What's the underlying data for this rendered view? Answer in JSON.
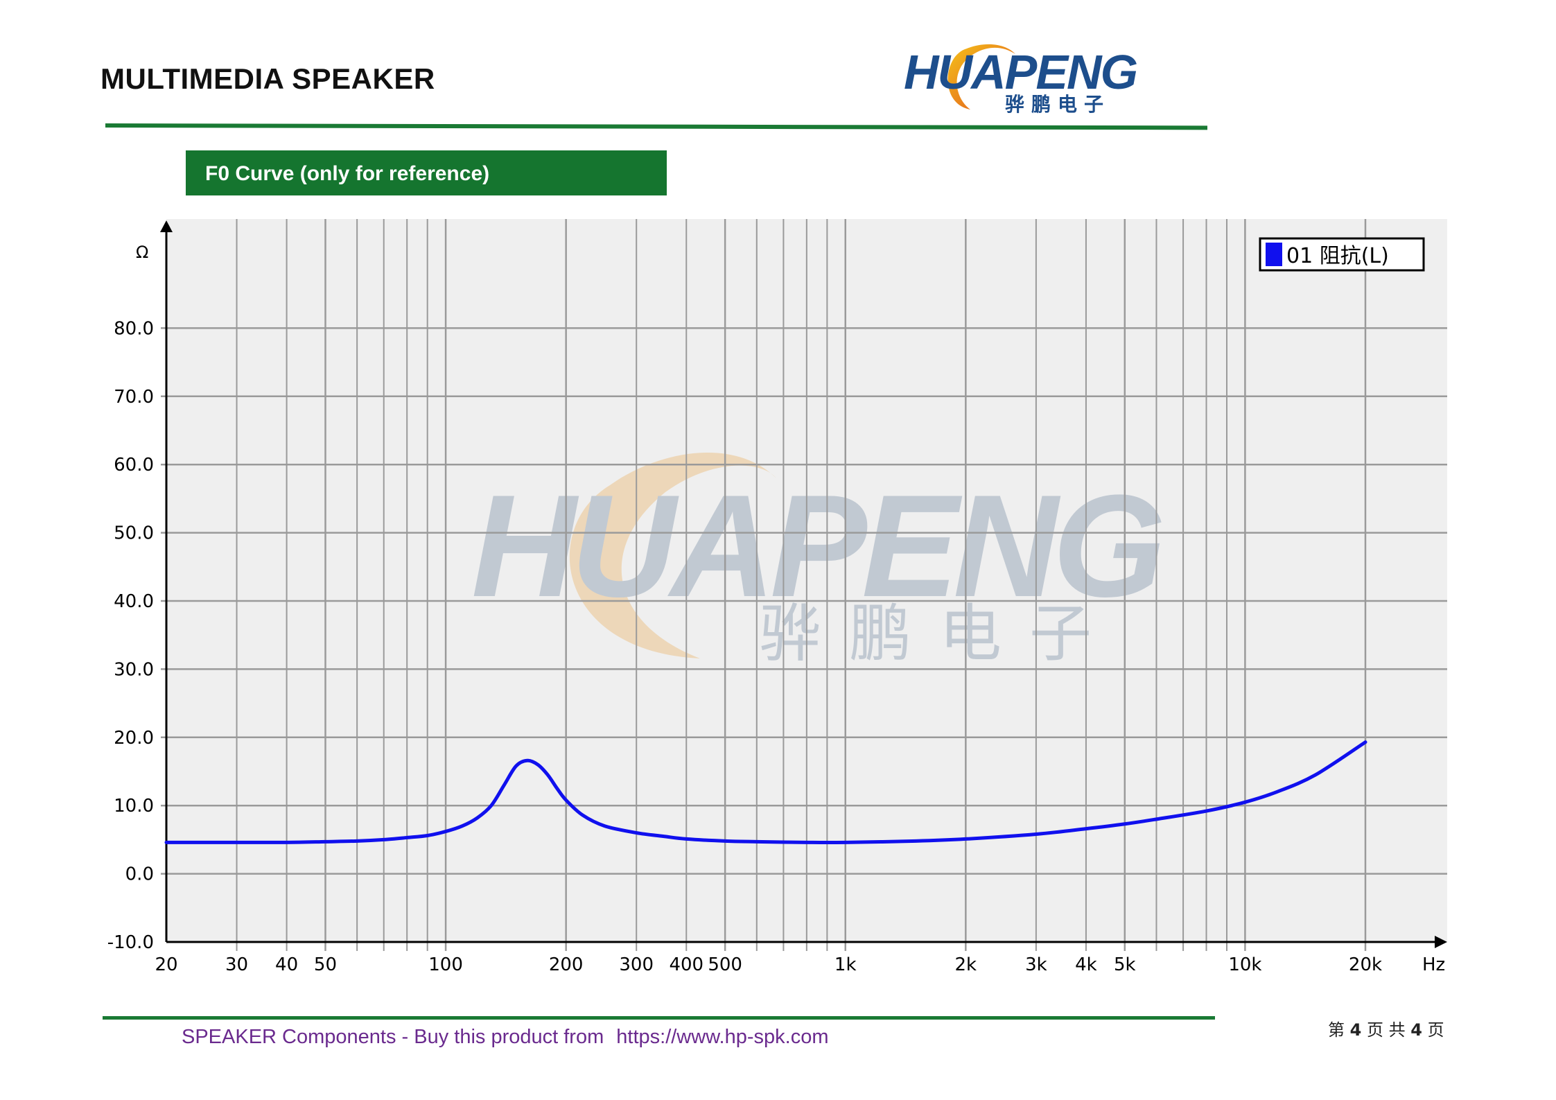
{
  "header": {
    "title": "MULTIMEDIA SPEAKER",
    "logo_text": "HUAPENG",
    "logo_subtext": "骅鹏电子"
  },
  "section": {
    "title": "F0 Curve (only for reference)"
  },
  "chart_data": {
    "type": "line",
    "title": "",
    "xlabel": "Hz",
    "ylabel": "Ω",
    "x_scale": "log",
    "xlim": [
      20,
      20000
    ],
    "ylim": [
      -10,
      90
    ],
    "grid": true,
    "legend_position": "top-right",
    "y_ticks": [
      "80.0",
      "70.0",
      "60.0",
      "50.0",
      "40.0",
      "30.0",
      "20.0",
      "10.0",
      "0.0",
      "-10.0"
    ],
    "x_tick_labels": [
      {
        "value": 20,
        "label": "20"
      },
      {
        "value": 30,
        "label": "30"
      },
      {
        "value": 40,
        "label": "40"
      },
      {
        "value": 50,
        "label": "50"
      },
      {
        "value": 100,
        "label": "100"
      },
      {
        "value": 200,
        "label": "200"
      },
      {
        "value": 300,
        "label": "300"
      },
      {
        "value": 400,
        "label": "400"
      },
      {
        "value": 500,
        "label": "500"
      },
      {
        "value": 1000,
        "label": "1k"
      },
      {
        "value": 2000,
        "label": "2k"
      },
      {
        "value": 3000,
        "label": "3k"
      },
      {
        "value": 4000,
        "label": "4k"
      },
      {
        "value": 5000,
        "label": "5k"
      },
      {
        "value": 10000,
        "label": "10k"
      },
      {
        "value": 20000,
        "label": "20k"
      }
    ],
    "series": [
      {
        "name": "01 阻抗(L)",
        "color": "#1010ee",
        "x": [
          20,
          30,
          40,
          50,
          60,
          70,
          80,
          90,
          100,
          110,
          120,
          130,
          140,
          150,
          160,
          170,
          180,
          190,
          200,
          220,
          250,
          300,
          350,
          400,
          500,
          600,
          800,
          1000,
          1500,
          2000,
          3000,
          4000,
          5000,
          6000,
          8000,
          10000,
          12000,
          15000,
          20000
        ],
        "y": [
          4.6,
          4.6,
          4.6,
          4.7,
          4.8,
          5.0,
          5.3,
          5.6,
          6.2,
          7.0,
          8.2,
          10.0,
          13.0,
          15.8,
          16.6,
          16.0,
          14.5,
          12.5,
          10.8,
          8.6,
          7.0,
          6.0,
          5.5,
          5.1,
          4.8,
          4.7,
          4.6,
          4.6,
          4.8,
          5.1,
          5.8,
          6.6,
          7.3,
          8.0,
          9.2,
          10.5,
          12.0,
          14.5,
          19.3
        ]
      }
    ]
  },
  "footer": {
    "text_left": "SPEAKER Components - Buy this product from",
    "url": "https://www.hp-spk.com",
    "page_pre": "第",
    "page_current": "4",
    "page_mid": "页 共",
    "page_total": "4",
    "page_post": "页"
  },
  "colors": {
    "accent_green": "#15752f",
    "plot_bg": "#efefef",
    "grid": "#9a9a9a",
    "footer_purple": "#6a2a8e",
    "logo_blue": "#1d4e8c",
    "logo_orange": "#e8841c"
  }
}
